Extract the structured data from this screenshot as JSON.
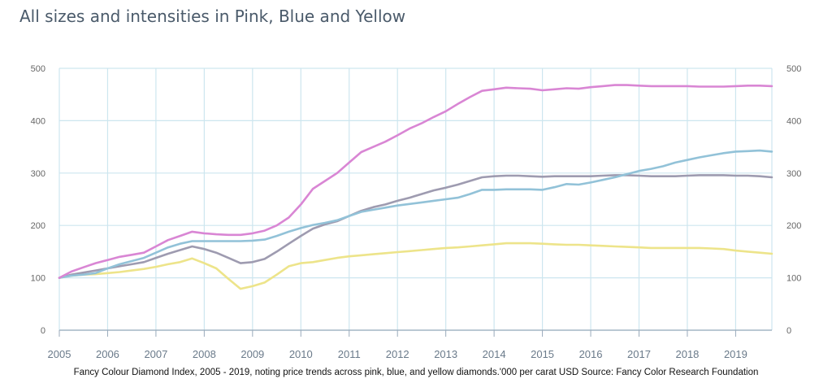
{
  "title": "All sizes and intensities in Pink, Blue and Yellow",
  "caption": "Fancy Colour Diamond Index, 2005 - 2019, noting price trends across pink, blue, and yellow diamonds.'000 per carat USD Source: Fancy Color Research Foundation",
  "chart_data": {
    "type": "line",
    "title": "All sizes and intensities in Pink, Blue and Yellow",
    "xlabel": "",
    "ylabel": "",
    "xlim": [
      2005,
      2019.75
    ],
    "ylim": [
      0,
      500
    ],
    "x_ticks": [
      "2005",
      "2006",
      "2007",
      "2008",
      "2009",
      "2010",
      "2011",
      "2012",
      "2013",
      "2014",
      "2015",
      "2016",
      "2017",
      "2018",
      "2019"
    ],
    "y_ticks": [
      0,
      100,
      200,
      300,
      400,
      500
    ],
    "grid": true,
    "legend": "none",
    "x": [
      2005,
      2005.25,
      2005.5,
      2005.75,
      2006,
      2006.25,
      2006.5,
      2006.75,
      2007,
      2007.25,
      2007.5,
      2007.75,
      2008,
      2008.25,
      2008.5,
      2008.75,
      2009,
      2009.25,
      2009.5,
      2009.75,
      2010,
      2010.25,
      2010.5,
      2010.75,
      2011,
      2011.25,
      2011.5,
      2011.75,
      2012,
      2012.25,
      2012.5,
      2012.75,
      2013,
      2013.25,
      2013.5,
      2013.75,
      2014,
      2014.25,
      2014.5,
      2014.75,
      2015,
      2015.25,
      2015.5,
      2015.75,
      2016,
      2016.25,
      2016.5,
      2016.75,
      2017,
      2017.25,
      2017.5,
      2017.75,
      2018,
      2018.25,
      2018.5,
      2018.75,
      2019,
      2019.25,
      2019.5,
      2019.75
    ],
    "series": [
      {
        "color": "#d986d4",
        "values": [
          100,
          112,
          120,
          128,
          134,
          140,
          144,
          148,
          160,
          172,
          180,
          188,
          185,
          183,
          182,
          182,
          185,
          190,
          200,
          215,
          240,
          270,
          285,
          300,
          320,
          340,
          350,
          360,
          372,
          385,
          395,
          407,
          418,
          432,
          445,
          457,
          460,
          463,
          462,
          461,
          458,
          460,
          462,
          461,
          464,
          466,
          468,
          468,
          467,
          466,
          466,
          466,
          466,
          465,
          465,
          465,
          466,
          467,
          467,
          466
        ]
      },
      {
        "color": "#92c2d8",
        "values": [
          100,
          104,
          106,
          109,
          118,
          126,
          132,
          138,
          148,
          158,
          165,
          170,
          170,
          170,
          170,
          170,
          171,
          173,
          180,
          188,
          195,
          201,
          205,
          210,
          218,
          226,
          230,
          234,
          238,
          241,
          244,
          247,
          250,
          253,
          260,
          268,
          268,
          269,
          269,
          269,
          268,
          273,
          279,
          278,
          282,
          287,
          292,
          298,
          304,
          308,
          313,
          320,
          325,
          330,
          334,
          338,
          341,
          342,
          343,
          341
        ]
      },
      {
        "color": "#9e9bb0",
        "values": [
          100,
          106,
          110,
          114,
          118,
          122,
          126,
          130,
          138,
          146,
          153,
          160,
          155,
          148,
          138,
          128,
          130,
          136,
          150,
          165,
          180,
          194,
          202,
          208,
          218,
          228,
          235,
          240,
          247,
          253,
          260,
          267,
          272,
          278,
          285,
          292,
          294,
          295,
          295,
          294,
          293,
          294,
          294,
          294,
          294,
          295,
          296,
          296,
          295,
          294,
          294,
          294,
          295,
          296,
          296,
          296,
          295,
          295,
          294,
          292
        ]
      },
      {
        "color": "#ede48a",
        "values": [
          100,
          104,
          106,
          107,
          109,
          111,
          114,
          117,
          121,
          126,
          130,
          137,
          128,
          118,
          98,
          79,
          84,
          91,
          106,
          122,
          128,
          130,
          134,
          138,
          141,
          143,
          145,
          147,
          149,
          151,
          153,
          155,
          157,
          158,
          160,
          162,
          164,
          166,
          166,
          166,
          165,
          164,
          163,
          163,
          162,
          161,
          160,
          159,
          158,
          157,
          157,
          157,
          157,
          157,
          156,
          155,
          152,
          150,
          148,
          146
        ]
      }
    ]
  }
}
